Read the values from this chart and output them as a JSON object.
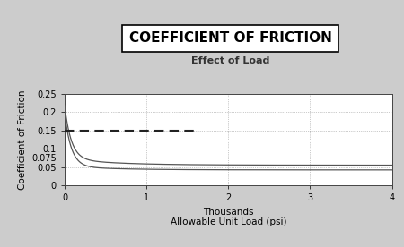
{
  "title": "COEFFICIENT OF FRICTION",
  "subtitle": "Effect of Load",
  "xlabel": "Allowable Unit Load (psi)",
  "xlabel_thousands": "Thousands",
  "ylabel": "Coefficient of Friction",
  "xlim": [
    0,
    4000
  ],
  "ylim": [
    0,
    0.25
  ],
  "yticks": [
    0,
    0.05,
    0.075,
    0.1,
    0.15,
    0.2,
    0.25
  ],
  "ytick_labels": [
    "0",
    "0.05",
    "0.075",
    "0.1",
    "0.15",
    "0.2",
    "0.25"
  ],
  "xticks": [
    0,
    1000,
    2000,
    3000,
    4000
  ],
  "xtick_labels": [
    "0",
    "1",
    "2",
    "3",
    "4"
  ],
  "dashed_line_y": 0.15,
  "dashed_line_x_start": 0,
  "dashed_line_x_end": 1600,
  "curve_color": "#555555",
  "dashed_color": "#222222",
  "outer_bg": "#cccccc",
  "plot_bg": "#ffffff",
  "grid_color": "#999999",
  "title_fontsize": 11,
  "subtitle_fontsize": 8,
  "label_fontsize": 7.5,
  "tick_fontsize": 7
}
